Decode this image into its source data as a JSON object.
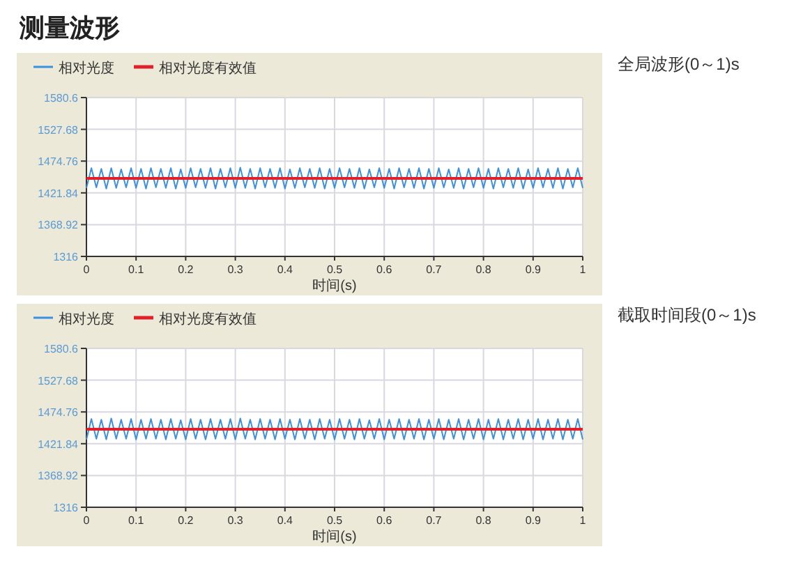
{
  "chart_data": [
    {
      "type": "line",
      "title": "测量波形",
      "annotations": [
        "全局波形(0～1)s"
      ],
      "xlabel": "时间(s)",
      "xlim": [
        0,
        1
      ],
      "xticks": [
        0,
        0.1,
        0.2,
        0.3,
        0.4,
        0.5,
        0.6,
        0.7,
        0.8,
        0.9,
        1
      ],
      "ylim": [
        1316,
        1580.6
      ],
      "yticks": [
        1316,
        1368.92,
        1421.84,
        1474.76,
        1527.68,
        1580.6
      ],
      "grid": true,
      "legend": "top left",
      "line_style": "solid",
      "x": [
        0,
        0.01,
        0.02,
        0.03,
        0.04,
        0.05,
        0.06,
        0.07,
        0.08,
        0.09,
        0.1,
        0.11,
        0.12,
        0.13,
        0.14,
        0.15,
        0.16,
        0.17,
        0.18,
        0.19,
        0.2,
        0.21,
        0.22,
        0.23,
        0.24,
        0.25,
        0.26,
        0.27,
        0.28,
        0.29,
        0.3,
        0.31,
        0.32,
        0.33,
        0.34,
        0.35,
        0.36,
        0.37,
        0.38,
        0.39,
        0.4,
        0.41,
        0.42,
        0.43,
        0.44,
        0.45,
        0.46,
        0.47,
        0.48,
        0.49,
        0.5,
        0.51,
        0.52,
        0.53,
        0.54,
        0.55,
        0.56,
        0.57,
        0.58,
        0.59,
        0.6,
        0.61,
        0.62,
        0.63,
        0.64,
        0.65,
        0.66,
        0.67,
        0.68,
        0.69,
        0.7,
        0.71,
        0.72,
        0.73,
        0.74,
        0.75,
        0.76,
        0.77,
        0.78,
        0.79,
        0.8,
        0.81,
        0.82,
        0.83,
        0.84,
        0.85,
        0.86,
        0.87,
        0.88,
        0.89,
        0.9,
        0.91,
        0.92,
        0.93,
        0.94,
        0.95,
        0.96,
        0.97,
        0.98,
        0.99,
        1
      ],
      "series": [
        {
          "name": "相对光度",
          "color": "#3d8fe0",
          "values": [
            1430,
            1463,
            1431,
            1462,
            1429,
            1463,
            1430,
            1461,
            1431,
            1463,
            1430,
            1462,
            1429,
            1463,
            1431,
            1462,
            1430,
            1463,
            1429,
            1461,
            1430,
            1463,
            1431,
            1462,
            1430,
            1463,
            1429,
            1462,
            1431,
            1463,
            1430,
            1464,
            1430,
            1462,
            1429,
            1463,
            1431,
            1462,
            1430,
            1463,
            1429,
            1461,
            1430,
            1463,
            1431,
            1462,
            1430,
            1463,
            1429,
            1462,
            1430,
            1463,
            1431,
            1462,
            1430,
            1463,
            1429,
            1461,
            1431,
            1463,
            1430,
            1462,
            1429,
            1463,
            1431,
            1462,
            1430,
            1463,
            1429,
            1462,
            1430,
            1463,
            1431,
            1461,
            1430,
            1463,
            1429,
            1462,
            1431,
            1463,
            1430,
            1462,
            1429,
            1463,
            1431,
            1462,
            1430,
            1463,
            1429,
            1461,
            1430,
            1463,
            1431,
            1462,
            1430,
            1463,
            1429,
            1462,
            1431,
            1463,
            1430
          ]
        },
        {
          "name": "相对光度有效值",
          "color": "#e0202a",
          "values": [
            1446,
            1446,
            1446,
            1446,
            1446,
            1446,
            1446,
            1446,
            1446,
            1446,
            1446,
            1446,
            1446,
            1446,
            1446,
            1446,
            1446,
            1446,
            1446,
            1446,
            1446,
            1446,
            1446,
            1446,
            1446,
            1446,
            1446,
            1446,
            1446,
            1446,
            1446,
            1446,
            1446,
            1446,
            1446,
            1446,
            1446,
            1446,
            1446,
            1446,
            1446,
            1446,
            1446,
            1446,
            1446,
            1446,
            1446,
            1446,
            1446,
            1446,
            1446,
            1446,
            1446,
            1446,
            1446,
            1446,
            1446,
            1446,
            1446,
            1446,
            1446,
            1446,
            1446,
            1446,
            1446,
            1446,
            1446,
            1446,
            1446,
            1446,
            1446,
            1446,
            1446,
            1446,
            1446,
            1446,
            1446,
            1446,
            1446,
            1446,
            1446,
            1446,
            1446,
            1446,
            1446,
            1446,
            1446,
            1446,
            1446,
            1446,
            1446,
            1446,
            1446,
            1446,
            1446,
            1446,
            1446,
            1446,
            1446,
            1446,
            1446
          ]
        }
      ]
    },
    {
      "type": "line",
      "annotations": [
        "截取时间段(0～1)s"
      ],
      "xlabel": "时间(s)",
      "xlim": [
        0,
        1
      ],
      "xticks": [
        0,
        0.1,
        0.2,
        0.3,
        0.4,
        0.5,
        0.6,
        0.7,
        0.8,
        0.9,
        1
      ],
      "ylim": [
        1316,
        1580.6
      ],
      "yticks": [
        1316,
        1368.92,
        1421.84,
        1474.76,
        1527.68,
        1580.6
      ],
      "grid": true,
      "legend": "top left",
      "line_style": "solid",
      "x": [
        0,
        0.01,
        0.02,
        0.03,
        0.04,
        0.05,
        0.06,
        0.07,
        0.08,
        0.09,
        0.1,
        0.11,
        0.12,
        0.13,
        0.14,
        0.15,
        0.16,
        0.17,
        0.18,
        0.19,
        0.2,
        0.21,
        0.22,
        0.23,
        0.24,
        0.25,
        0.26,
        0.27,
        0.28,
        0.29,
        0.3,
        0.31,
        0.32,
        0.33,
        0.34,
        0.35,
        0.36,
        0.37,
        0.38,
        0.39,
        0.4,
        0.41,
        0.42,
        0.43,
        0.44,
        0.45,
        0.46,
        0.47,
        0.48,
        0.49,
        0.5,
        0.51,
        0.52,
        0.53,
        0.54,
        0.55,
        0.56,
        0.57,
        0.58,
        0.59,
        0.6,
        0.61,
        0.62,
        0.63,
        0.64,
        0.65,
        0.66,
        0.67,
        0.68,
        0.69,
        0.7,
        0.71,
        0.72,
        0.73,
        0.74,
        0.75,
        0.76,
        0.77,
        0.78,
        0.79,
        0.8,
        0.81,
        0.82,
        0.83,
        0.84,
        0.85,
        0.86,
        0.87,
        0.88,
        0.89,
        0.9,
        0.91,
        0.92,
        0.93,
        0.94,
        0.95,
        0.96,
        0.97,
        0.98,
        0.99,
        1
      ],
      "series": [
        {
          "name": "相对光度",
          "color": "#3d8fe0",
          "values": [
            1429,
            1463,
            1430,
            1462,
            1429,
            1464,
            1430,
            1462,
            1430,
            1463,
            1429,
            1462,
            1430,
            1463,
            1430,
            1462,
            1429,
            1463,
            1430,
            1461,
            1429,
            1463,
            1430,
            1462,
            1429,
            1463,
            1430,
            1462,
            1430,
            1463,
            1429,
            1464,
            1430,
            1462,
            1429,
            1463,
            1430,
            1462,
            1429,
            1463,
            1430,
            1462,
            1429,
            1463,
            1430,
            1462,
            1429,
            1463,
            1430,
            1462,
            1429,
            1463,
            1430,
            1462,
            1429,
            1463,
            1430,
            1461,
            1430,
            1463,
            1429,
            1462,
            1430,
            1463,
            1429,
            1462,
            1430,
            1463,
            1429,
            1462,
            1430,
            1463,
            1429,
            1462,
            1430,
            1463,
            1429,
            1462,
            1430,
            1463,
            1429,
            1462,
            1430,
            1463,
            1429,
            1462,
            1430,
            1463,
            1429,
            1462,
            1430,
            1463,
            1429,
            1462,
            1430,
            1463,
            1429,
            1462,
            1430,
            1463,
            1429
          ]
        },
        {
          "name": "相对光度有效值",
          "color": "#e0202a",
          "values": [
            1446,
            1446,
            1446,
            1446,
            1446,
            1446,
            1446,
            1446,
            1446,
            1446,
            1446,
            1446,
            1446,
            1446,
            1446,
            1446,
            1446,
            1446,
            1446,
            1446,
            1446,
            1446,
            1446,
            1446,
            1446,
            1446,
            1446,
            1446,
            1446,
            1446,
            1446,
            1446,
            1446,
            1446,
            1446,
            1446,
            1446,
            1446,
            1446,
            1446,
            1446,
            1446,
            1446,
            1446,
            1446,
            1446,
            1446,
            1446,
            1446,
            1446,
            1446,
            1446,
            1446,
            1446,
            1446,
            1446,
            1446,
            1446,
            1446,
            1446,
            1446,
            1446,
            1446,
            1446,
            1446,
            1446,
            1446,
            1446,
            1446,
            1446,
            1446,
            1446,
            1446,
            1446,
            1446,
            1446,
            1446,
            1446,
            1446,
            1446,
            1446,
            1446,
            1446,
            1446,
            1446,
            1446,
            1446,
            1446,
            1446,
            1446,
            1446,
            1446,
            1446,
            1446,
            1446,
            1446,
            1446,
            1446,
            1446,
            1446,
            1446
          ]
        }
      ]
    }
  ]
}
